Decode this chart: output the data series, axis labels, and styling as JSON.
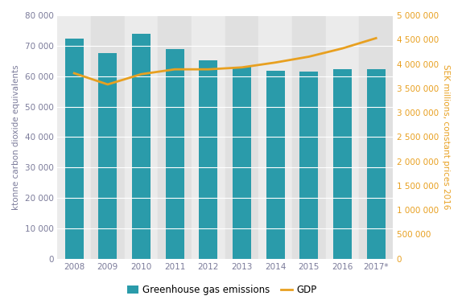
{
  "years": [
    "2008",
    "2009",
    "2010",
    "2011",
    "2012",
    "2013",
    "2014",
    "2015",
    "2016",
    "2017*"
  ],
  "emissions": [
    72300,
    67700,
    74000,
    69000,
    65200,
    63200,
    61700,
    61400,
    62200,
    62400
  ],
  "gdp": [
    3810000,
    3580000,
    3790000,
    3890000,
    3890000,
    3930000,
    4030000,
    4150000,
    4320000,
    4530000
  ],
  "bar_color": "#2A9BAA",
  "line_color": "#E8A020",
  "bg_color": "#E0E0E0",
  "stripe_color": "#EBEBEB",
  "left_ylim": [
    0,
    80000
  ],
  "left_yticks": [
    0,
    10000,
    20000,
    30000,
    40000,
    50000,
    60000,
    70000,
    80000
  ],
  "right_ylim": [
    0,
    5000000
  ],
  "right_yticks": [
    0,
    500000,
    1000000,
    1500000,
    2000000,
    2500000,
    3000000,
    3500000,
    4000000,
    4500000,
    5000000
  ],
  "ylabel_left": "ktonne carbon dioxide equivalents",
  "ylabel_right": "SEK millions, constant prices 2016",
  "legend_labels": [
    "Greenhouse gas emissions",
    "GDP"
  ],
  "left_tick_color": "#7B7B9A",
  "right_tick_color": "#E8A020",
  "label_color": "#7B7B9A",
  "axis_fontsize": 7.5,
  "tick_fontsize": 7.5
}
